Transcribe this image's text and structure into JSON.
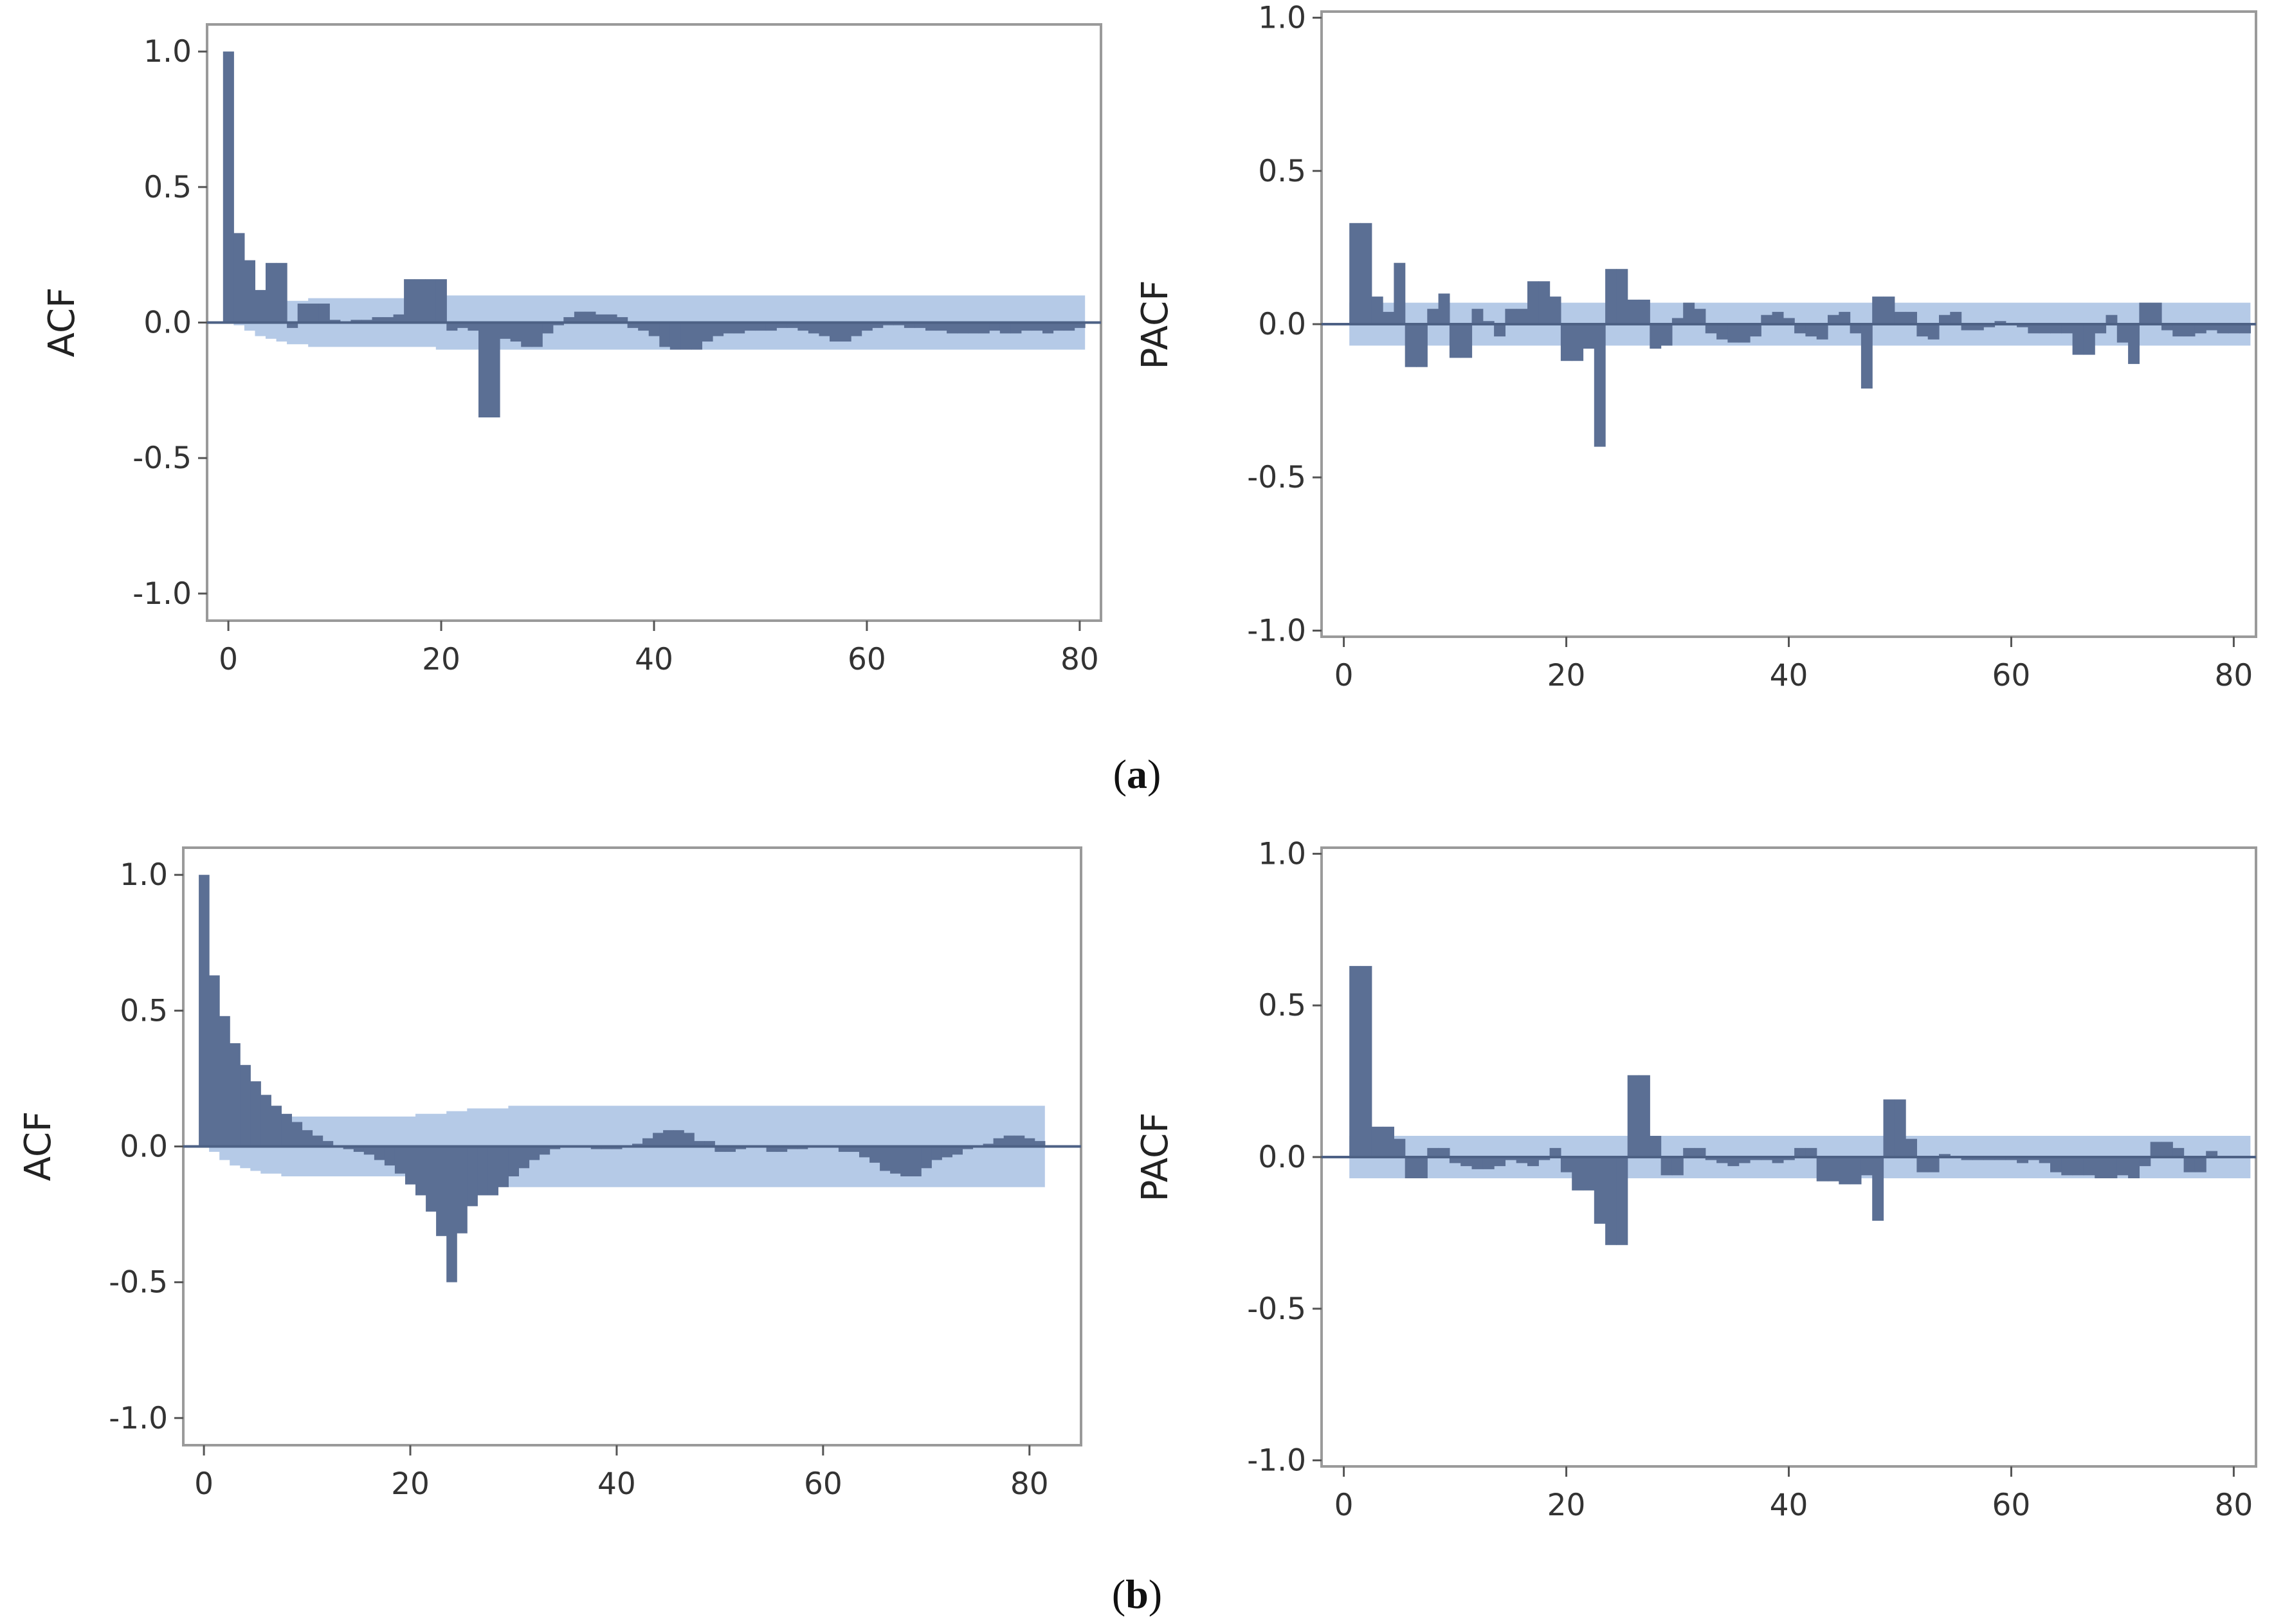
{
  "figure": {
    "captions": [
      "a",
      "b"
    ]
  },
  "colors": {
    "bar": "#5b6f94",
    "band": "#a8c1e3",
    "zero": "#4d6185",
    "frame": "#9a9a9a",
    "tick": "#555555"
  },
  "chart_data": [
    {
      "id": "a-acf",
      "panel": "a",
      "type": "bar",
      "ylabel": "ACF",
      "xlim": [
        -2,
        82
      ],
      "ylim": [
        -1.1,
        1.1
      ],
      "xticks": [
        0,
        20,
        40,
        60,
        80
      ],
      "xtick_labels": [
        "0",
        "20",
        "40",
        "60",
        "80"
      ],
      "yticks": [
        1.0,
        0.5,
        0.0,
        -0.5,
        -1.0
      ],
      "ytick_labels": [
        "1.0",
        "0.5",
        "0.0",
        "-0.5",
        "-1.0"
      ],
      "lags": [
        0,
        1,
        2,
        3,
        4,
        5,
        6,
        7,
        8,
        9,
        10,
        11,
        12,
        13,
        14,
        15,
        16,
        17,
        18,
        19,
        20,
        21,
        22,
        23,
        24,
        25,
        26,
        27,
        28,
        29,
        30,
        31,
        32,
        33,
        34,
        35,
        36,
        37,
        38,
        39,
        40,
        41,
        42,
        43,
        44,
        45,
        46,
        47,
        48,
        49,
        50,
        51,
        52,
        53,
        54,
        55,
        56,
        57,
        58,
        59,
        60,
        61,
        62,
        63,
        64,
        65,
        66,
        67,
        68,
        69,
        70,
        71,
        72,
        73,
        74,
        75,
        76,
        77,
        78,
        79,
        80
      ],
      "values": [
        1.0,
        0.33,
        0.23,
        0.12,
        0.22,
        0.22,
        -0.02,
        0.07,
        0.07,
        0.07,
        0.01,
        0.0,
        0.01,
        0.01,
        0.02,
        0.02,
        0.03,
        0.16,
        0.16,
        0.16,
        0.16,
        -0.03,
        -0.02,
        -0.03,
        -0.35,
        -0.35,
        -0.06,
        -0.07,
        -0.09,
        -0.09,
        -0.04,
        -0.01,
        0.02,
        0.04,
        0.04,
        0.03,
        0.03,
        0.02,
        -0.02,
        -0.03,
        -0.05,
        -0.09,
        -0.1,
        -0.1,
        -0.1,
        -0.07,
        -0.05,
        -0.04,
        -0.04,
        -0.03,
        -0.03,
        -0.03,
        -0.02,
        -0.02,
        -0.03,
        -0.04,
        -0.05,
        -0.07,
        -0.07,
        -0.05,
        -0.03,
        -0.02,
        -0.01,
        -0.01,
        -0.02,
        -0.02,
        -0.03,
        -0.03,
        -0.04,
        -0.04,
        -0.04,
        -0.04,
        -0.03,
        -0.04,
        -0.04,
        -0.03,
        -0.03,
        -0.04,
        -0.03,
        -0.03,
        -0.02
      ],
      "ci_upper": [
        0.0,
        0.01,
        0.03,
        0.05,
        0.06,
        0.07,
        0.08,
        0.08,
        0.09,
        0.09,
        0.09,
        0.09,
        0.09,
        0.09,
        0.09,
        0.09,
        0.09,
        0.09,
        0.09,
        0.09,
        0.1,
        0.1,
        0.1,
        0.1,
        0.1,
        0.1,
        0.1,
        0.1,
        0.1,
        0.1,
        0.1,
        0.1,
        0.1,
        0.1,
        0.1,
        0.1,
        0.1,
        0.1,
        0.1,
        0.1,
        0.1,
        0.1,
        0.1,
        0.1,
        0.1,
        0.1,
        0.1,
        0.1,
        0.1,
        0.1,
        0.1,
        0.1,
        0.1,
        0.1,
        0.1,
        0.1,
        0.1,
        0.1,
        0.1,
        0.1,
        0.1,
        0.1,
        0.1,
        0.1,
        0.1,
        0.1,
        0.1,
        0.1,
        0.1,
        0.1,
        0.1,
        0.1,
        0.1,
        0.1,
        0.1,
        0.1,
        0.1,
        0.1,
        0.1,
        0.1,
        0.1
      ]
    },
    {
      "id": "a-pacf",
      "panel": "a",
      "type": "bar",
      "ylabel": "PACF",
      "xlim": [
        -2,
        82
      ],
      "ylim": [
        -1.02,
        1.02
      ],
      "xticks": [
        0,
        20,
        40,
        60,
        80
      ],
      "xtick_labels": [
        "0",
        "20",
        "40",
        "60",
        "80"
      ],
      "yticks": [
        1.0,
        0.5,
        0.0,
        -0.5,
        -1.0
      ],
      "ytick_labels": [
        "1.0",
        "0.5",
        "0.0",
        "-0.5",
        "-1.0"
      ],
      "lags": [
        1,
        2,
        3,
        4,
        5,
        6,
        7,
        8,
        9,
        10,
        11,
        12,
        13,
        14,
        15,
        16,
        17,
        18,
        19,
        20,
        21,
        22,
        23,
        24,
        25,
        26,
        27,
        28,
        29,
        30,
        31,
        32,
        33,
        34,
        35,
        36,
        37,
        38,
        39,
        40,
        41,
        42,
        43,
        44,
        45,
        46,
        47,
        48,
        49,
        50,
        51,
        52,
        53,
        54,
        55,
        56,
        57,
        58,
        59,
        60,
        61,
        62,
        63,
        64,
        65,
        66,
        67,
        68,
        69,
        70,
        71,
        72,
        73,
        74,
        75,
        76,
        77,
        78,
        79,
        80,
        81
      ],
      "values": [
        0.33,
        0.33,
        0.09,
        0.04,
        0.2,
        -0.14,
        -0.14,
        0.05,
        0.1,
        -0.11,
        -0.11,
        0.05,
        0.01,
        -0.04,
        0.05,
        0.05,
        0.14,
        0.14,
        0.09,
        -0.12,
        -0.12,
        -0.08,
        -0.4,
        0.18,
        0.18,
        0.08,
        0.08,
        -0.08,
        -0.07,
        0.02,
        0.07,
        0.05,
        -0.03,
        -0.05,
        -0.06,
        -0.06,
        -0.04,
        0.03,
        0.04,
        0.02,
        -0.03,
        -0.04,
        -0.05,
        0.03,
        0.04,
        -0.03,
        -0.21,
        0.09,
        0.09,
        0.04,
        0.04,
        -0.04,
        -0.05,
        0.03,
        0.04,
        -0.02,
        -0.02,
        -0.01,
        0.01,
        0.0,
        -0.01,
        -0.03,
        -0.03,
        -0.03,
        -0.03,
        -0.1,
        -0.1,
        -0.03,
        0.03,
        -0.06,
        -0.13,
        0.07,
        0.07,
        -0.02,
        -0.04,
        -0.04,
        -0.03,
        -0.02,
        -0.03,
        -0.03,
        -0.03
      ],
      "ci_upper": [
        0.07,
        0.07,
        0.07,
        0.07,
        0.07,
        0.07,
        0.07,
        0.07,
        0.07,
        0.07,
        0.07,
        0.07,
        0.07,
        0.07,
        0.07,
        0.07,
        0.07,
        0.07,
        0.07,
        0.07,
        0.07,
        0.07,
        0.07,
        0.07,
        0.07,
        0.07,
        0.07,
        0.07,
        0.07,
        0.07,
        0.07,
        0.07,
        0.07,
        0.07,
        0.07,
        0.07,
        0.07,
        0.07,
        0.07,
        0.07,
        0.07,
        0.07,
        0.07,
        0.07,
        0.07,
        0.07,
        0.07,
        0.07,
        0.07,
        0.07,
        0.07,
        0.07,
        0.07,
        0.07,
        0.07,
        0.07,
        0.07,
        0.07,
        0.07,
        0.07,
        0.07,
        0.07,
        0.07,
        0.07,
        0.07,
        0.07,
        0.07,
        0.07,
        0.07,
        0.07,
        0.07,
        0.07,
        0.07,
        0.07,
        0.07,
        0.07,
        0.07,
        0.07,
        0.07,
        0.07,
        0.07
      ]
    },
    {
      "id": "b-acf",
      "panel": "b",
      "type": "bar",
      "ylabel": "ACF",
      "xlim": [
        -2,
        85
      ],
      "ylim": [
        -1.1,
        1.1
      ],
      "xticks": [
        0,
        20,
        40,
        60,
        80
      ],
      "xtick_labels": [
        "0",
        "20",
        "40",
        "60",
        "80"
      ],
      "yticks": [
        1.0,
        0.5,
        0.0,
        -0.5,
        -1.0
      ],
      "ytick_labels": [
        "1.0",
        "0.5",
        "0.0",
        "-0.5",
        "-1.0"
      ],
      "lags": [
        0,
        1,
        2,
        3,
        4,
        5,
        6,
        7,
        8,
        9,
        10,
        11,
        12,
        13,
        14,
        15,
        16,
        17,
        18,
        19,
        20,
        21,
        22,
        23,
        24,
        25,
        26,
        27,
        28,
        29,
        30,
        31,
        32,
        33,
        34,
        35,
        36,
        37,
        38,
        39,
        40,
        41,
        42,
        43,
        44,
        45,
        46,
        47,
        48,
        49,
        50,
        51,
        52,
        53,
        54,
        55,
        56,
        57,
        58,
        59,
        60,
        61,
        62,
        63,
        64,
        65,
        66,
        67,
        68,
        69,
        70,
        71,
        72,
        73,
        74,
        75,
        76,
        77,
        78,
        79,
        80,
        81
      ],
      "values": [
        1.0,
        0.63,
        0.48,
        0.38,
        0.3,
        0.24,
        0.19,
        0.15,
        0.12,
        0.09,
        0.06,
        0.04,
        0.02,
        0.0,
        -0.01,
        -0.02,
        -0.03,
        -0.05,
        -0.07,
        -0.1,
        -0.14,
        -0.18,
        -0.24,
        -0.33,
        -0.5,
        -0.32,
        -0.22,
        -0.18,
        -0.18,
        -0.15,
        -0.11,
        -0.08,
        -0.05,
        -0.03,
        -0.01,
        0.0,
        0.0,
        0.0,
        -0.01,
        -0.01,
        -0.01,
        0.0,
        0.01,
        0.03,
        0.05,
        0.06,
        0.06,
        0.05,
        0.02,
        0.02,
        -0.02,
        -0.02,
        -0.01,
        0.0,
        0.0,
        -0.02,
        -0.02,
        -0.01,
        -0.01,
        0.0,
        0.0,
        0.0,
        -0.02,
        -0.02,
        -0.04,
        -0.06,
        -0.09,
        -0.1,
        -0.11,
        -0.11,
        -0.08,
        -0.05,
        -0.04,
        -0.03,
        -0.01,
        0.0,
        0.01,
        0.03,
        0.04,
        0.04,
        0.03,
        0.02
      ],
      "ci_upper": [
        0.0,
        0.02,
        0.05,
        0.07,
        0.08,
        0.09,
        0.1,
        0.1,
        0.11,
        0.11,
        0.11,
        0.11,
        0.11,
        0.11,
        0.11,
        0.11,
        0.11,
        0.11,
        0.11,
        0.11,
        0.11,
        0.12,
        0.12,
        0.12,
        0.13,
        0.13,
        0.14,
        0.14,
        0.14,
        0.14,
        0.15,
        0.15,
        0.15,
        0.15,
        0.15,
        0.15,
        0.15,
        0.15,
        0.15,
        0.15,
        0.15,
        0.15,
        0.15,
        0.15,
        0.15,
        0.15,
        0.15,
        0.15,
        0.15,
        0.15,
        0.15,
        0.15,
        0.15,
        0.15,
        0.15,
        0.15,
        0.15,
        0.15,
        0.15,
        0.15,
        0.15,
        0.15,
        0.15,
        0.15,
        0.15,
        0.15,
        0.15,
        0.15,
        0.15,
        0.15,
        0.15,
        0.15,
        0.15,
        0.15,
        0.15,
        0.15,
        0.15,
        0.15,
        0.15,
        0.15,
        0.15,
        0.15
      ]
    },
    {
      "id": "b-pacf",
      "panel": "b",
      "type": "bar",
      "ylabel": "PACF",
      "xlim": [
        -2,
        82
      ],
      "ylim": [
        -1.02,
        1.02
      ],
      "xticks": [
        0,
        20,
        40,
        60,
        80
      ],
      "xtick_labels": [
        "0",
        "20",
        "40",
        "60",
        "80"
      ],
      "yticks": [
        1.0,
        0.5,
        0.0,
        -0.5,
        -1.0
      ],
      "ytick_labels": [
        "1.0",
        "0.5",
        "0.0",
        "-0.5",
        "-1.0"
      ],
      "lags": [
        1,
        2,
        3,
        4,
        5,
        6,
        7,
        8,
        9,
        10,
        11,
        12,
        13,
        14,
        15,
        16,
        17,
        18,
        19,
        20,
        21,
        22,
        23,
        24,
        25,
        26,
        27,
        28,
        29,
        30,
        31,
        32,
        33,
        34,
        35,
        36,
        37,
        38,
        39,
        40,
        41,
        42,
        43,
        44,
        45,
        46,
        47,
        48,
        49,
        50,
        51,
        52,
        53,
        54,
        55,
        56,
        57,
        58,
        59,
        60,
        61,
        62,
        63,
        64,
        65,
        66,
        67,
        68,
        69,
        70,
        71,
        72,
        73,
        74,
        75,
        76,
        77,
        78,
        79,
        80,
        81
      ],
      "values": [
        0.63,
        0.63,
        0.1,
        0.1,
        0.06,
        -0.07,
        -0.07,
        0.03,
        0.03,
        -0.02,
        -0.03,
        -0.04,
        -0.04,
        -0.03,
        -0.01,
        -0.02,
        -0.03,
        -0.01,
        0.03,
        -0.05,
        -0.11,
        -0.11,
        -0.22,
        -0.29,
        -0.29,
        0.27,
        0.27,
        0.07,
        -0.06,
        -0.06,
        0.03,
        0.03,
        -0.01,
        -0.02,
        -0.03,
        -0.02,
        -0.01,
        -0.01,
        -0.02,
        -0.01,
        0.03,
        0.03,
        -0.08,
        -0.08,
        -0.09,
        -0.09,
        -0.06,
        -0.21,
        0.19,
        0.19,
        0.06,
        -0.05,
        -0.05,
        0.01,
        0.0,
        -0.01,
        -0.01,
        -0.01,
        -0.01,
        -0.01,
        -0.02,
        -0.01,
        -0.02,
        -0.05,
        -0.06,
        -0.06,
        -0.06,
        -0.07,
        -0.07,
        -0.06,
        -0.07,
        -0.03,
        0.05,
        0.05,
        0.03,
        -0.05,
        -0.05,
        0.02,
        0.0,
        0.0,
        0.0
      ],
      "ci_upper": [
        0.07,
        0.07,
        0.07,
        0.07,
        0.07,
        0.07,
        0.07,
        0.07,
        0.07,
        0.07,
        0.07,
        0.07,
        0.07,
        0.07,
        0.07,
        0.07,
        0.07,
        0.07,
        0.07,
        0.07,
        0.07,
        0.07,
        0.07,
        0.07,
        0.07,
        0.07,
        0.07,
        0.07,
        0.07,
        0.07,
        0.07,
        0.07,
        0.07,
        0.07,
        0.07,
        0.07,
        0.07,
        0.07,
        0.07,
        0.07,
        0.07,
        0.07,
        0.07,
        0.07,
        0.07,
        0.07,
        0.07,
        0.07,
        0.07,
        0.07,
        0.07,
        0.07,
        0.07,
        0.07,
        0.07,
        0.07,
        0.07,
        0.07,
        0.07,
        0.07,
        0.07,
        0.07,
        0.07,
        0.07,
        0.07,
        0.07,
        0.07,
        0.07,
        0.07,
        0.07,
        0.07,
        0.07,
        0.07,
        0.07,
        0.07,
        0.07,
        0.07,
        0.07,
        0.07,
        0.07,
        0.07
      ]
    }
  ]
}
